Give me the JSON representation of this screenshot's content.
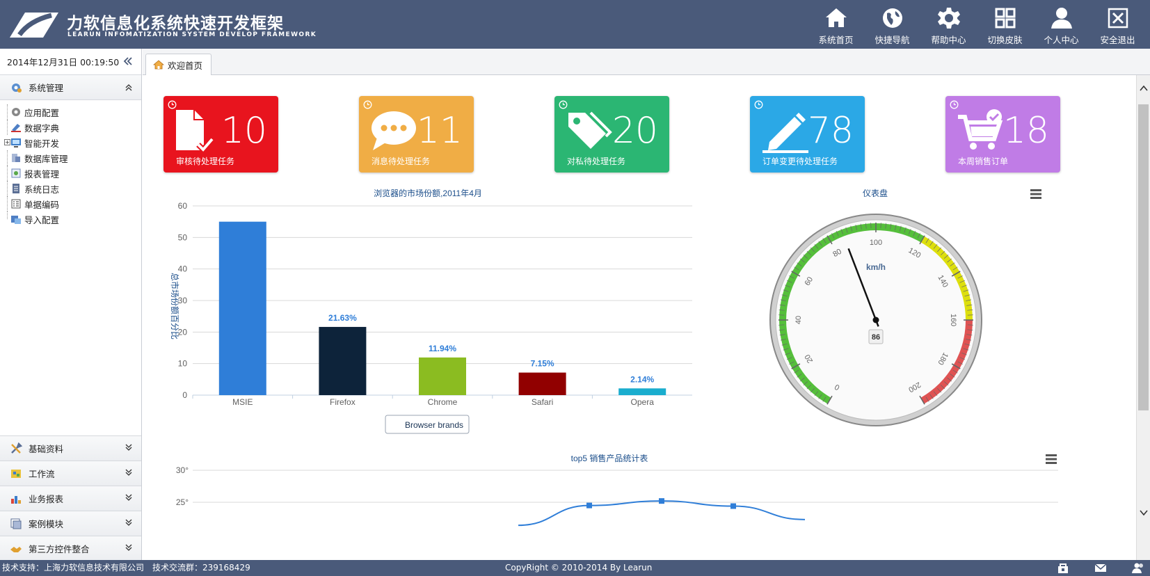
{
  "app": {
    "title": "力软信息化系统快速开发框架",
    "subtitle": "LEARUN INFOMATIZATION SYSTEM DEVELOP FRAMEWORK"
  },
  "top_nav": [
    {
      "label": "系统首页",
      "icon": "home-icon"
    },
    {
      "label": "快捷导航",
      "icon": "globe-icon"
    },
    {
      "label": "帮助中心",
      "icon": "gear-icon"
    },
    {
      "label": "切换皮肤",
      "icon": "grid-icon"
    },
    {
      "label": "个人中心",
      "icon": "user-icon"
    },
    {
      "label": "安全退出",
      "icon": "exit-icon"
    }
  ],
  "sidebar": {
    "datetime": "2014年12月31日 00:19:50",
    "sections": [
      {
        "label": "系统管理",
        "icon": "system-icon",
        "expanded": true
      },
      {
        "label": "基础资料",
        "icon": "tools-icon",
        "expanded": false
      },
      {
        "label": "工作流",
        "icon": "workflow-icon",
        "expanded": false
      },
      {
        "label": "业务报表",
        "icon": "report-icon",
        "expanded": false
      },
      {
        "label": "案例模块",
        "icon": "case-icon",
        "expanded": false
      },
      {
        "label": "第三方控件整合",
        "icon": "plugin-icon",
        "expanded": false
      }
    ],
    "tree": [
      {
        "label": "应用配置",
        "icon": "config-icon"
      },
      {
        "label": "数据字典",
        "icon": "dictionary-icon"
      },
      {
        "label": "智能开发",
        "icon": "dev-icon",
        "has_children": true
      },
      {
        "label": "数据库管理",
        "icon": "database-icon"
      },
      {
        "label": "报表管理",
        "icon": "report-manage-icon"
      },
      {
        "label": "系统日志",
        "icon": "log-icon"
      },
      {
        "label": "单据编码",
        "icon": "code-icon"
      },
      {
        "label": "导入配置",
        "icon": "import-icon"
      }
    ]
  },
  "tabs": [
    {
      "label": "欢迎首页",
      "icon": "home-icon"
    }
  ],
  "tiles": [
    {
      "count": "10",
      "label": "审核待处理任务",
      "color": "#e8141e",
      "icon": "document-check-icon"
    },
    {
      "count": "11",
      "label": "消息待处理任务",
      "color": "#f0ad45",
      "icon": "chat-icon"
    },
    {
      "count": "20",
      "label": "对私待处理任务",
      "color": "#2bb673",
      "icon": "tag-icon"
    },
    {
      "count": "78",
      "label": "订单变更待处理任务",
      "color": "#2ba8e6",
      "icon": "pencil-icon"
    },
    {
      "count": "18",
      "label": "本周销售订单",
      "color": "#c07ce6",
      "icon": "cart-check-icon"
    }
  ],
  "chart_data": [
    {
      "type": "bar",
      "title": "浏览器的市场份额,2011年4月",
      "ylabel": "总市场份额百分比",
      "xlabel": "",
      "ylim": [
        0,
        60
      ],
      "yticks": [
        0,
        10,
        20,
        30,
        40,
        50,
        60
      ],
      "categories": [
        "MSIE",
        "Firefox",
        "Chrome",
        "Safari",
        "Opera"
      ],
      "values": [
        55.0,
        21.63,
        11.94,
        7.15,
        2.14
      ],
      "data_labels": [
        "",
        "21.63%",
        "11.94%",
        "7.15%",
        "2.14%"
      ],
      "colors": [
        "#2f7ed8",
        "#0d233a",
        "#8bbc21",
        "#910000",
        "#1aadce"
      ],
      "grid": true,
      "button_label": "Browser brands"
    },
    {
      "type": "gauge",
      "title": "仪表盘",
      "unit": "km/h",
      "min": 0,
      "max": 200,
      "ticks": [
        0,
        20,
        40,
        60,
        80,
        100,
        120,
        140,
        160,
        180,
        200
      ],
      "value": 86,
      "bands": [
        {
          "from": 0,
          "to": 120,
          "color": "#55bf3b"
        },
        {
          "from": 120,
          "to": 160,
          "color": "#dddf0d"
        },
        {
          "from": 160,
          "to": 200,
          "color": "#df5353"
        }
      ]
    },
    {
      "type": "line",
      "title": "top5 销售产品统计表",
      "yticks": [
        "30°",
        "25°"
      ],
      "ylim": [
        20,
        30
      ],
      "series": [
        {
          "values": [
            21.4,
            24.5,
            25.2,
            24.4,
            22.3
          ]
        }
      ]
    }
  ],
  "footer": {
    "support": "技术支持：上海力软信息技术有限公司　技术交流群：239168429",
    "copyright": "CopyRight © 2010-2014 By Learun"
  },
  "colors": {
    "header_bg": "#4a5a7a",
    "link_blue": "#1a4d8a"
  }
}
